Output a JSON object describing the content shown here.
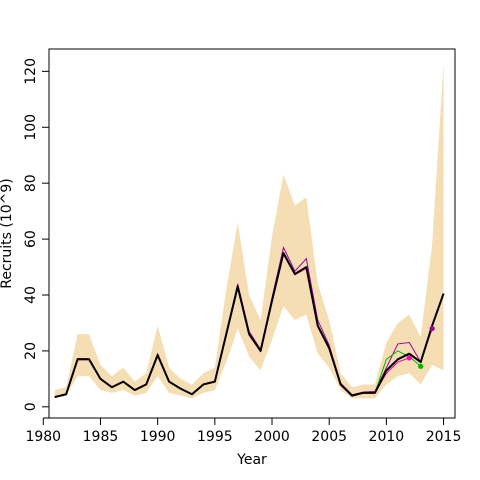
{
  "chart_data": {
    "type": "line",
    "title": "",
    "xlabel": "Year",
    "ylabel": "Recruits (10^9)",
    "xlim": [
      1980.5,
      2016.0
    ],
    "ylim": [
      -4,
      128
    ],
    "xticks": [
      1980,
      1985,
      1990,
      1995,
      2000,
      2005,
      2010,
      2015
    ],
    "yticks": [
      0,
      20,
      40,
      60,
      80,
      100,
      120
    ],
    "grid": false,
    "legend": "none",
    "colors": {
      "band": "#f5deb3",
      "main": "#000000",
      "retro_purple": "#9b009b",
      "retro_green": "#00b400",
      "retro_magenta": "#ff00b4"
    },
    "band": {
      "x": [
        1981,
        1982,
        1983,
        1984,
        1985,
        1986,
        1987,
        1988,
        1989,
        1990,
        1991,
        1992,
        1993,
        1994,
        1995,
        1996,
        1997,
        1998,
        1999,
        2000,
        2001,
        2002,
        2003,
        2004,
        2005,
        2006,
        2007,
        2008,
        2009,
        2010,
        2011,
        2012,
        2013,
        2014,
        2015
      ],
      "upper": [
        6,
        7,
        26,
        26,
        15,
        11,
        14,
        9,
        12,
        29,
        14,
        10,
        8,
        12,
        14,
        42,
        66,
        40,
        31,
        61,
        83,
        72,
        75,
        44,
        31,
        12,
        7,
        8,
        8,
        23,
        30,
        33,
        25,
        58,
        123
      ],
      "lower": [
        3,
        4,
        11,
        11,
        6,
        5,
        6,
        4,
        5,
        11,
        5,
        4,
        3,
        5,
        6,
        16,
        28,
        18,
        13,
        24,
        36,
        31,
        33,
        19,
        14,
        6,
        3,
        3,
        3,
        8,
        11,
        12,
        8,
        15,
        13
      ]
    },
    "series": [
      {
        "x": [
          1981,
          1982,
          1983,
          1984,
          1985,
          1986,
          1987,
          1988,
          1989,
          1990,
          1991,
          1992,
          1993,
          1994,
          1995,
          1996,
          1997,
          1998,
          1999,
          2000,
          2001,
          2002,
          2003,
          2004,
          2005,
          2006,
          2007,
          2008,
          2009,
          2010,
          2011,
          2012,
          2013,
          2014,
          2015
        ],
        "values": [
          3.5,
          4.5,
          17,
          17,
          10,
          7,
          9,
          6,
          8,
          18.5,
          9,
          6.5,
          4.5,
          8,
          9,
          26,
          43,
          26,
          20,
          38,
          55,
          47.5,
          50,
          29,
          21,
          8,
          4,
          5,
          5,
          13,
          17,
          19,
          16,
          29,
          40.5
        ]
      }
    ],
    "retro_series": [
      {
        "x": [
          1981,
          1982,
          1983,
          1984,
          1985,
          1986,
          1987,
          1988,
          1989,
          1990,
          1991,
          1992,
          1993,
          1994,
          1995,
          1996,
          1997,
          1998,
          1999,
          2000,
          2001,
          2002,
          2003,
          2004,
          2005,
          2006,
          2007,
          2008,
          2009,
          2010,
          2011,
          2012,
          2013,
          2014
        ],
        "values": [
          3.6,
          4.6,
          17.3,
          17.2,
          10.1,
          7.2,
          9.1,
          6.1,
          8.2,
          19,
          9.2,
          6.6,
          4.6,
          8.2,
          9.2,
          26.5,
          44,
          27,
          20.5,
          39,
          57,
          48.5,
          53,
          31,
          22,
          8.5,
          4.3,
          5.3,
          5.5,
          14,
          22.5,
          23,
          16,
          28
        ],
        "end_value": 28
      },
      {
        "x": [
          1981,
          1982,
          1983,
          1984,
          1985,
          1986,
          1987,
          1988,
          1989,
          1990,
          1991,
          1992,
          1993,
          1994,
          1995,
          1996,
          1997,
          1998,
          1999,
          2000,
          2001,
          2002,
          2003,
          2004,
          2005,
          2006,
          2007,
          2008,
          2009,
          2010,
          2011,
          2012,
          2013
        ],
        "values": [
          3.5,
          4.5,
          17,
          17,
          10,
          7,
          9,
          6,
          8,
          18.5,
          9,
          6.5,
          4.5,
          8,
          9,
          26,
          43,
          26,
          20,
          38,
          55,
          47.5,
          50,
          29,
          21,
          8,
          4,
          5,
          5,
          17,
          20,
          18,
          14.5
        ],
        "end_value": 14.5
      },
      {
        "x": [
          1981,
          1982,
          1983,
          1984,
          1985,
          1986,
          1987,
          1988,
          1989,
          1990,
          1991,
          1992,
          1993,
          1994,
          1995,
          1996,
          1997,
          1998,
          1999,
          2000,
          2001,
          2002,
          2003,
          2004,
          2005,
          2006,
          2007,
          2008,
          2009,
          2010,
          2011,
          2012
        ],
        "values": [
          3.5,
          4.4,
          16.8,
          16.9,
          9.9,
          7,
          8.9,
          5.9,
          7.9,
          18.3,
          8.9,
          6.4,
          4.4,
          7.9,
          8.9,
          25.8,
          42.8,
          25.8,
          19.8,
          37.8,
          54.5,
          47.2,
          49.5,
          28.6,
          20.6,
          7.8,
          4,
          4.9,
          4.9,
          12,
          16,
          17.5
        ],
        "end_value": 17.5
      }
    ]
  }
}
